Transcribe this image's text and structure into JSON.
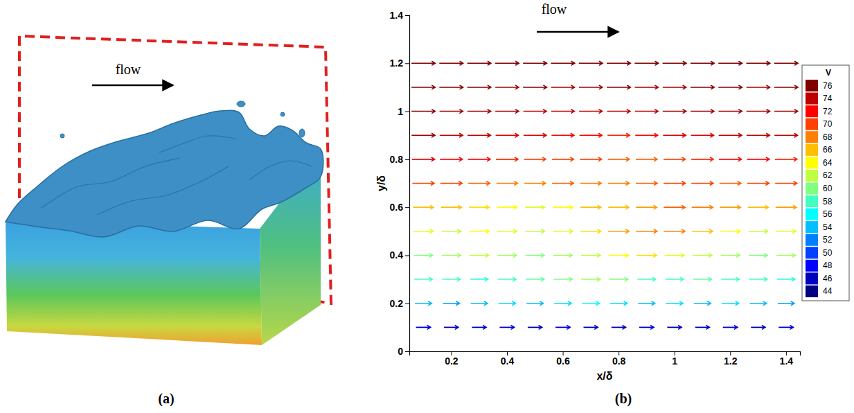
{
  "panel_a": {
    "type": "3d-isosurface",
    "annotation": "flow",
    "panel_label": "(a)"
  },
  "chart_data": {
    "type": "vector-field",
    "annotation": "flow",
    "panel_label": "(b)",
    "xlabel": "x/δ",
    "ylabel": "y/δ",
    "xlim": [
      0.05,
      1.45
    ],
    "xticks": [
      0.2,
      0.4,
      0.6,
      0.8,
      1,
      1.2,
      1.4
    ],
    "ylim": [
      0,
      1.4
    ],
    "yticks": [
      0,
      0.2,
      0.4,
      0.6,
      0.8,
      1,
      1.2,
      1.4
    ],
    "x": [
      0.1,
      0.2,
      0.3,
      0.4,
      0.5,
      0.6,
      0.7,
      0.8,
      0.9,
      1,
      1.1,
      1.2,
      1.3,
      1.4
    ],
    "y": [
      0.1,
      0.2,
      0.3,
      0.4,
      0.5,
      0.6,
      0.7,
      0.8,
      0.9,
      1,
      1.1,
      1.2
    ],
    "values": [
      [
        47,
        46,
        46,
        47,
        46,
        47,
        46,
        46,
        47,
        46,
        46,
        47,
        46,
        47
      ],
      [
        54,
        53,
        54,
        55,
        54,
        55,
        56,
        55,
        54,
        55,
        54,
        55,
        54,
        53
      ],
      [
        58,
        58,
        57,
        58,
        59,
        60,
        61,
        60,
        58,
        58,
        59,
        58,
        58,
        57
      ],
      [
        60,
        61,
        62,
        61,
        60,
        61,
        62,
        64,
        65,
        63,
        62,
        61,
        60,
        61
      ],
      [
        63,
        62,
        64,
        63,
        62,
        63,
        65,
        67,
        68,
        68,
        66,
        64,
        62,
        63
      ],
      [
        66,
        66,
        65,
        64,
        63,
        64,
        66,
        66,
        67,
        69,
        68,
        67,
        66,
        67
      ],
      [
        70,
        70,
        69,
        68,
        68,
        69,
        68,
        68,
        69,
        70,
        70,
        69,
        70,
        70
      ],
      [
        73,
        72,
        72,
        71,
        70,
        70,
        70,
        69,
        69,
        70,
        71,
        72,
        72,
        71
      ],
      [
        75,
        74,
        74,
        73,
        73,
        72,
        72,
        71,
        72,
        73,
        73,
        74,
        74,
        74
      ],
      [
        76,
        75,
        75,
        75,
        74,
        74,
        74,
        74,
        74,
        75,
        75,
        75,
        75,
        75
      ],
      [
        76,
        76,
        76,
        75,
        76,
        75,
        75,
        76,
        75,
        75,
        76,
        76,
        75,
        76
      ],
      [
        76,
        76,
        76,
        76,
        76,
        76,
        76,
        76,
        76,
        76,
        76,
        76,
        76,
        76
      ]
    ],
    "colorbar": {
      "title": "V",
      "range": [
        44,
        76
      ],
      "ticks": [
        44,
        46,
        48,
        50,
        52,
        54,
        56,
        58,
        60,
        62,
        64,
        66,
        68,
        70,
        72,
        74,
        76
      ]
    }
  }
}
